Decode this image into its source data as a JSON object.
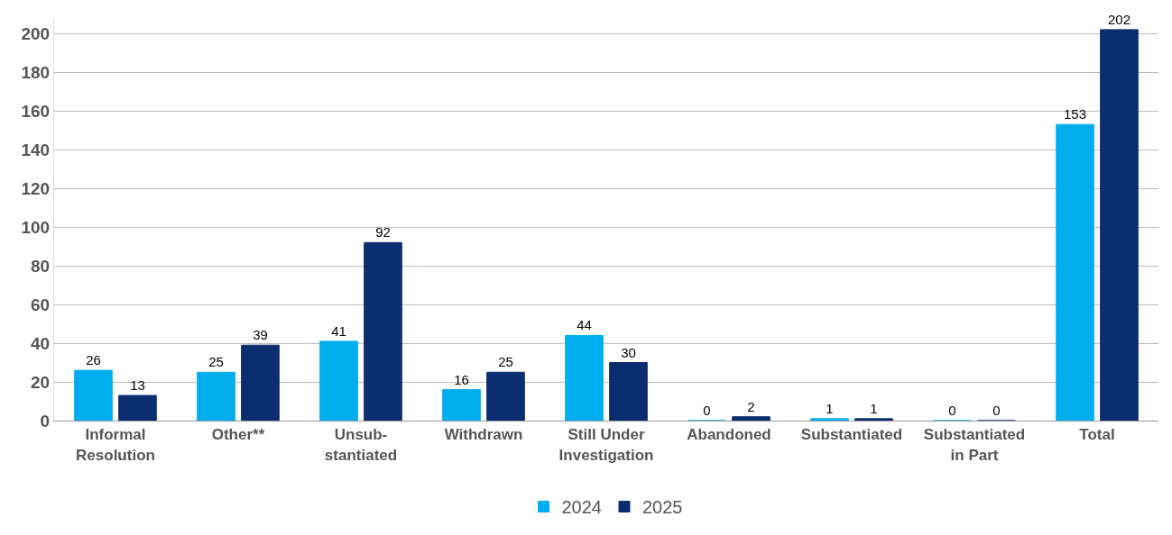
{
  "chart_data": {
    "type": "bar",
    "categories": [
      "Informal\nResolution",
      "Other**",
      "Unsub-\nstantiated",
      "Withdrawn",
      "Still Under\nInvestigation",
      "Abandoned",
      "Substantiated",
      "Substantiated\nin Part",
      "Total"
    ],
    "series": [
      {
        "name": "2024",
        "color": "#00aeef",
        "values": [
          26,
          25,
          41,
          16,
          44,
          0,
          1,
          0,
          153
        ]
      },
      {
        "name": "2025",
        "color": "#0c2d6f",
        "values": [
          13,
          39,
          92,
          25,
          30,
          2,
          1,
          0,
          202
        ]
      }
    ],
    "ylim": [
      0,
      208
    ],
    "yticks": [
      0,
      20,
      40,
      60,
      80,
      100,
      120,
      140,
      160,
      180,
      200
    ],
    "grid": "y",
    "legend": "bottom",
    "data_labels": true
  }
}
